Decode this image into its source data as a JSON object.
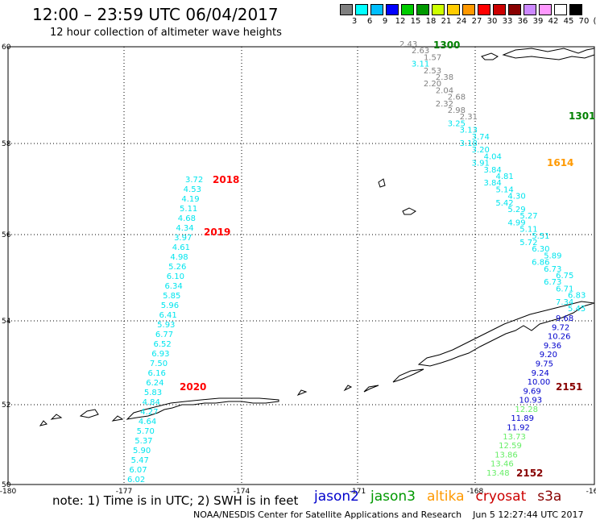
{
  "header": {
    "title": "12:00 – 23:59 UTC 06/04/2017",
    "subtitle": "12 hour collection of altimeter wave heights"
  },
  "colorbar": {
    "colors": [
      "#808080",
      "#00ffff",
      "#00bfff",
      "#0000ff",
      "#00cc00",
      "#009900",
      "#ccff00",
      "#ffcc00",
      "#ff9900",
      "#ff0000",
      "#cc0000",
      "#880000",
      "#cc88ff",
      "#ff99ff",
      "#ffffff",
      "#000000"
    ],
    "labels": [
      "3",
      "6",
      "9",
      "12",
      "15",
      "18",
      "21",
      "24",
      "27",
      "30",
      "33",
      "36",
      "39",
      "42",
      "45",
      "70",
      "(ft)"
    ]
  },
  "axes": {
    "lat_labels": [
      "60",
      "58",
      "56",
      "54",
      "52",
      "50"
    ],
    "lon_labels": [
      "-180",
      "-177",
      "-174",
      "-171",
      "-168",
      "-16"
    ]
  },
  "tracks": [
    {
      "id": "t2018",
      "label": "2018",
      "label_color": "#ff0000",
      "values": [
        "3.72",
        "4.53",
        "4.19",
        "5.11",
        "4.68",
        "4.34",
        "3.97",
        "4.61",
        "4.98",
        "5.26",
        "6.10",
        "6.34",
        "5.85",
        "5.96",
        "6.41",
        "5.93",
        "6.77",
        "6.52",
        "6.93",
        "7.50",
        "6.16",
        "6.24",
        "5.83",
        "4.84",
        "4.27",
        "4.64",
        "5.70",
        "5.37",
        "5.90",
        "5.47",
        "6.07",
        "6.02"
      ]
    },
    {
      "id": "t1300",
      "values": [
        "2.43",
        "2.63",
        "1.57",
        "3.11",
        "2.53",
        "2.38",
        "2.20",
        "2.04",
        "2.68",
        "2.32",
        "2.98",
        "2.31",
        "3.25",
        "3.13",
        "3.74",
        "3.18",
        "3.20",
        "4.04",
        "3.91",
        "3.84",
        "4.81",
        "3.84",
        "5.14",
        "4.30",
        "5.42",
        "5.29",
        "5.27",
        "4.99",
        "5.11",
        "5.51",
        "5.72",
        "6.30",
        "5.89",
        "6.86",
        "6.73",
        "6.75",
        "6.73",
        "6.71",
        "6.83",
        "7.34",
        "5.45"
      ]
    },
    {
      "id": "t2151",
      "values": [
        "9.68",
        "9.72",
        "10.26",
        "9.36",
        "9.20",
        "9.75",
        "9.24",
        "10.00",
        "9.69",
        "10.93",
        "12.28",
        "11.89",
        "11.92",
        "13.73",
        "12.59",
        "13.86",
        "13.46",
        "13.48"
      ]
    }
  ],
  "orbit_labels": [
    {
      "text": "1300",
      "color": "#008000"
    },
    {
      "text": "1301",
      "color": "#008000"
    },
    {
      "text": "1614",
      "color": "#ff9900"
    },
    {
      "text": "2019",
      "color": "#ff0000"
    },
    {
      "text": "2020",
      "color": "#ff0000"
    },
    {
      "text": "2151",
      "color": "#880000"
    },
    {
      "text": "2152",
      "color": "#880000"
    }
  ],
  "note": "note: 1) Time is in UTC; 2) SWH is in feet",
  "satellites": [
    {
      "name": "jason2",
      "color": "#0000cc"
    },
    {
      "name": "jason3",
      "color": "#009900"
    },
    {
      "name": "altika",
      "color": "#ff9900"
    },
    {
      "name": "cryosat",
      "color": "#cc0000"
    },
    {
      "name": "s3a",
      "color": "#880000"
    }
  ],
  "footer": {
    "org": "NOAA/NESDIS Center for Satellite Applications and Research",
    "timestamp": "Jun 5 12:27:44 UTC 2017"
  }
}
